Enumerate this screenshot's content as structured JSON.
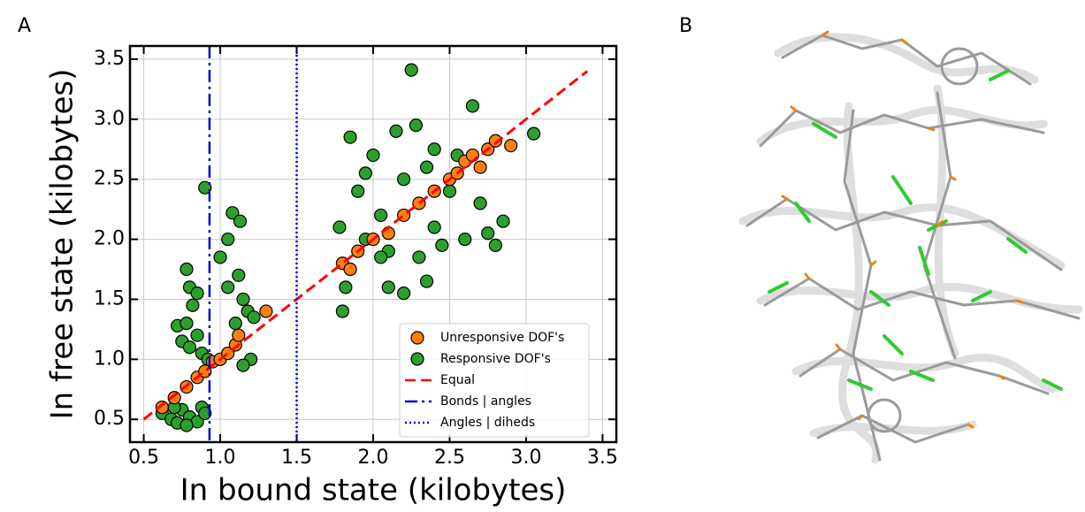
{
  "panels": [
    "A",
    "B"
  ],
  "chart_data": {
    "type": "scatter",
    "x_label": "In bound state (kilobytes)",
    "y_label": "In free state (kilobytes)",
    "xlim": [
      0.41,
      3.59
    ],
    "ylim": [
      0.31,
      3.61
    ],
    "xticks": [
      0.5,
      {
        "value": 1,
        "label": "1.0"
      },
      1.5,
      {
        "value": 2,
        "label": "2.0"
      },
      2.5,
      {
        "value": 3,
        "label": "3.0"
      },
      3.5
    ],
    "yticks": [
      0.5,
      {
        "value": 1,
        "label": "1.0"
      },
      1.5,
      {
        "value": 2,
        "label": "2.0"
      },
      2.5,
      {
        "value": 3,
        "label": "3.0"
      },
      3.5
    ],
    "grid": true,
    "legend": "lower right",
    "series": [
      {
        "name": "Responsive DOF's",
        "color": "#2ca02c",
        "marker": "circle",
        "x": [
          0.62,
          0.68,
          0.72,
          0.75,
          0.8,
          0.85,
          0.88,
          0.78,
          0.7,
          0.9,
          0.72,
          0.75,
          0.8,
          0.85,
          0.88,
          0.78,
          0.82,
          0.8,
          0.78,
          0.85,
          0.9,
          0.92,
          1.0,
          1.05,
          1.08,
          1.12,
          1.15,
          1.1,
          1.18,
          1.2,
          1.15,
          1.22,
          1.05,
          1.13,
          1.8,
          1.82,
          1.78,
          1.85,
          1.9,
          1.95,
          2.0,
          2.05,
          2.1,
          2.15,
          2.2,
          2.25,
          2.28,
          2.3,
          2.35,
          2.4,
          2.45,
          2.5,
          2.55,
          2.6,
          2.65,
          2.7,
          2.75,
          2.8,
          2.85,
          2.2,
          2.35,
          2.1,
          3.05,
          1.95,
          2.4,
          2.05
        ],
        "values": [
          0.55,
          0.5,
          0.47,
          0.58,
          0.52,
          0.48,
          0.6,
          0.45,
          0.6,
          0.55,
          1.28,
          1.15,
          1.1,
          1.2,
          1.05,
          1.3,
          1.45,
          1.6,
          1.75,
          1.55,
          2.43,
          1.0,
          1.85,
          2.0,
          2.22,
          1.7,
          1.5,
          1.3,
          1.4,
          1.0,
          0.95,
          1.35,
          1.6,
          2.15,
          1.4,
          1.6,
          2.1,
          2.85,
          2.4,
          2.0,
          2.7,
          2.2,
          1.9,
          2.9,
          2.5,
          3.41,
          2.95,
          1.85,
          2.6,
          2.1,
          1.95,
          2.4,
          2.7,
          2.0,
          3.11,
          2.3,
          2.05,
          1.95,
          2.15,
          1.55,
          1.65,
          1.6,
          2.88,
          2.55,
          2.75,
          1.85
        ]
      },
      {
        "name": "Unresponsive DOF's",
        "color": "#ff7f0e",
        "marker": "circle",
        "x": [
          0.62,
          0.7,
          0.78,
          0.85,
          0.9,
          0.95,
          1.0,
          1.05,
          1.1,
          1.12,
          1.3,
          1.8,
          1.85,
          1.9,
          2.0,
          2.1,
          2.2,
          2.3,
          2.4,
          2.5,
          2.55,
          2.6,
          2.65,
          2.7,
          2.75,
          2.8,
          2.9
        ],
        "values": [
          0.6,
          0.68,
          0.77,
          0.85,
          0.9,
          0.98,
          1.0,
          1.05,
          1.12,
          1.2,
          1.4,
          1.8,
          1.75,
          1.9,
          2.0,
          2.05,
          2.2,
          2.3,
          2.4,
          2.5,
          2.55,
          2.65,
          2.7,
          2.6,
          2.75,
          2.82,
          2.78
        ]
      },
      {
        "name": "Equal",
        "color": "#ff0000",
        "linestyle": "dashed",
        "x": [
          0.5,
          3.4
        ],
        "values": [
          0.5,
          3.4
        ]
      },
      {
        "name": "Bonds | angles",
        "color": "#0000cc",
        "linestyle": "dashdot",
        "xline": 0.93
      },
      {
        "name": "Angles | diheds",
        "color": "#0000ff",
        "linestyle": "dotted",
        "xline": 1.5
      }
    ],
    "legend_order": [
      1,
      0,
      2,
      3,
      4
    ]
  }
}
